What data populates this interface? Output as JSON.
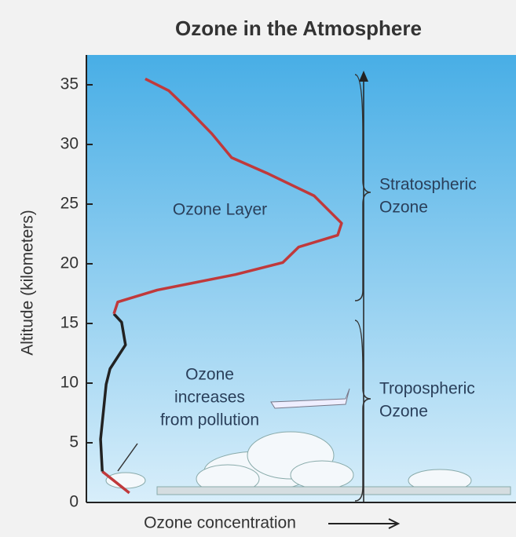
{
  "chart_data": {
    "type": "line",
    "title": "Ozone in the Atmosphere",
    "xlabel": "Ozone concentration",
    "ylabel": "Altitude (kilometers)",
    "xlim": [
      0,
      100
    ],
    "ylim": [
      0,
      37.5
    ],
    "yticks": [
      0,
      5,
      10,
      15,
      20,
      25,
      30,
      35
    ],
    "series": [
      {
        "color": "#c0393b",
        "x": [
          10,
          3.7
        ],
        "values": [
          0.8,
          2.6
        ]
      },
      {
        "color": "#222222",
        "x": [
          3.7,
          3.3,
          4.6,
          5.5,
          9.1,
          8.2,
          6.4
        ],
        "values": [
          2.6,
          5.3,
          9.9,
          11.2,
          13.2,
          15.1,
          15.8
        ]
      },
      {
        "color": "#c0393b",
        "x": [
          6.4,
          7.3,
          16.5,
          34.7,
          45.7,
          49.4,
          58.5,
          59.4,
          53,
          42,
          33.8,
          29.2,
          23.8,
          19.2,
          13.7
        ],
        "values": [
          15.8,
          16.8,
          17.8,
          19.1,
          20.1,
          21.4,
          22.4,
          23.4,
          25.7,
          27.6,
          28.9,
          30.9,
          32.9,
          34.5,
          35.5
        ]
      }
    ],
    "annotations": [
      {
        "lines": [
          "Ozone Layer"
        ]
      },
      {
        "lines": [
          "Ozone",
          "increases",
          "from pollution"
        ]
      },
      {
        "lines": [
          "Stratospheric",
          "Ozone"
        ]
      },
      {
        "lines": [
          "Tropospheric",
          "Ozone"
        ]
      }
    ]
  }
}
